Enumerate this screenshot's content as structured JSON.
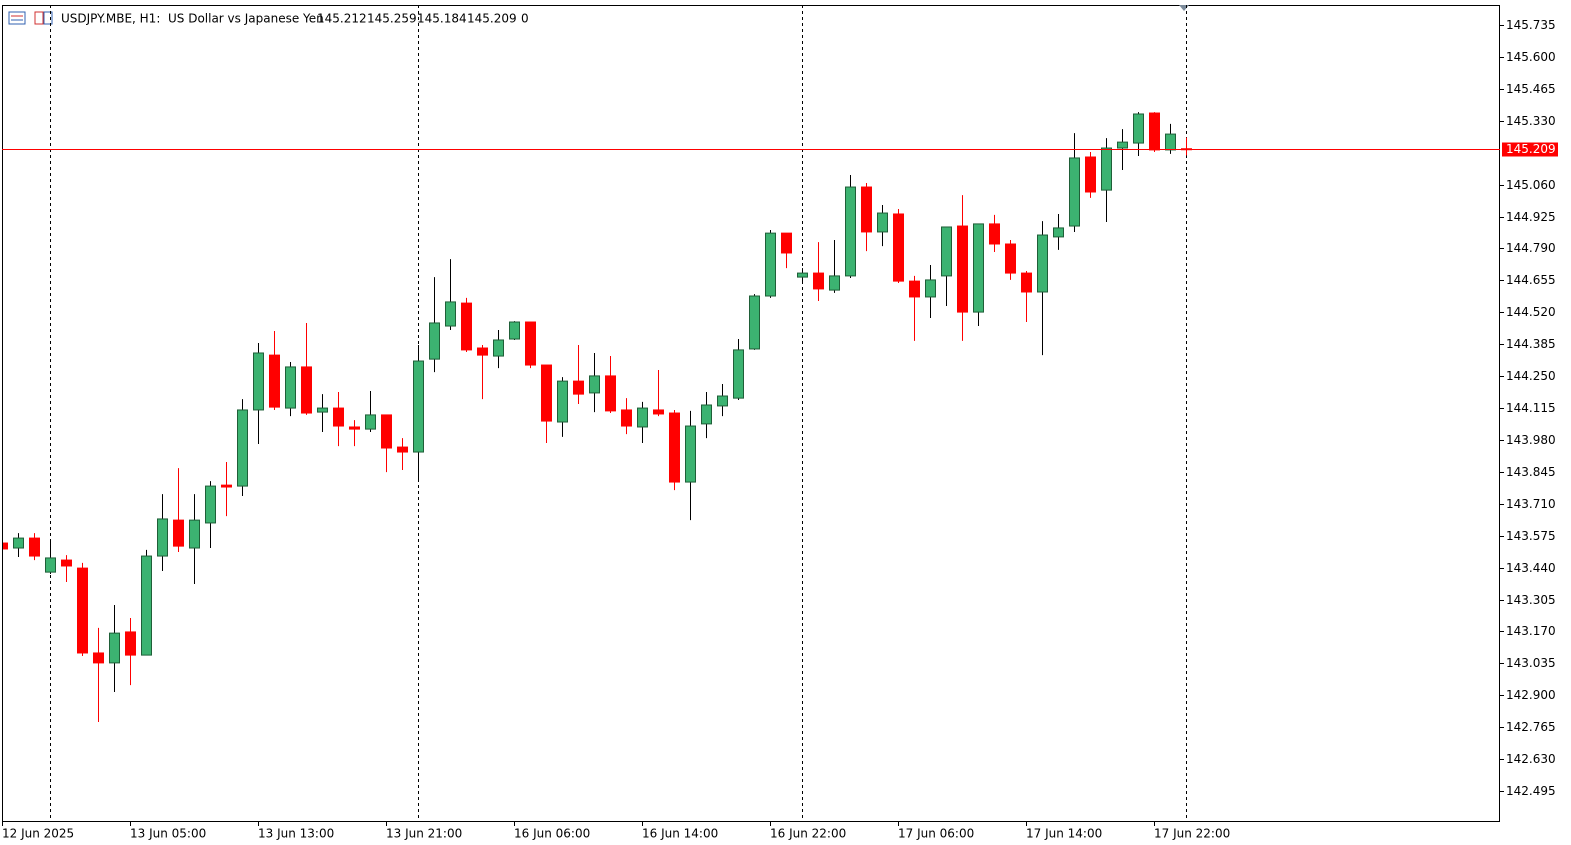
{
  "chart_data": {
    "type": "candlestick",
    "title": "USDJPY.MBE, H1:  US Dollar vs Japanese Yen",
    "header_value": 0,
    "categories": [
      "12 Jun 2025",
      null,
      null,
      null,
      null,
      null,
      null,
      null,
      "13 Jun 05:00",
      null,
      null,
      null,
      null,
      null,
      null,
      null,
      "13 Jun 13:00",
      null,
      null,
      null,
      null,
      null,
      null,
      null,
      "13 Jun 21:00",
      null,
      null,
      null,
      null,
      null,
      null,
      null,
      "16 Jun 06:00",
      null,
      null,
      null,
      null,
      null,
      null,
      null,
      "16 Jun 14:00",
      null,
      null,
      null,
      null,
      null,
      null,
      null,
      "16 Jun 22:00",
      null,
      null,
      null,
      null,
      null,
      null,
      null,
      "17 Jun 06:00",
      null,
      null,
      null,
      null,
      null,
      null,
      null,
      "17 Jun 14:00",
      null,
      null,
      null,
      null,
      null,
      null,
      null,
      "17 Jun 22:00",
      null,
      null
    ],
    "open": [
      143.544,
      143.523,
      143.565,
      143.421,
      143.472,
      143.438,
      143.079,
      143.037,
      143.168,
      143.07,
      143.489,
      143.641,
      143.523,
      143.629,
      143.789,
      143.785,
      144.107,
      144.339,
      144.115,
      144.289,
      144.098,
      144.115,
      144.035,
      144.026,
      144.086,
      143.95,
      143.929,
      144.322,
      144.462,
      144.559,
      144.369,
      144.335,
      144.407,
      144.479,
      144.297,
      144.056,
      144.229,
      144.179,
      144.251,
      144.107,
      144.035,
      144.107,
      144.094,
      143.802,
      144.048,
      144.124,
      144.157,
      144.365,
      144.589,
      144.855,
      144.669,
      144.686,
      144.614,
      144.674,
      145.05,
      144.86,
      144.936,
      144.652,
      144.585,
      144.674,
      144.885,
      144.521,
      144.894,
      144.809,
      144.686,
      144.606,
      144.839,
      144.885,
      145.177,
      145.037,
      145.215,
      145.236,
      145.363,
      145.207,
      145.212
    ],
    "high": [
      143.553,
      143.586,
      143.586,
      143.557,
      143.493,
      143.46,
      143.185,
      143.282,
      143.227,
      143.515,
      143.751,
      143.861,
      143.751,
      143.806,
      143.887,
      144.153,
      144.39,
      144.441,
      144.31,
      144.475,
      144.174,
      144.183,
      144.064,
      144.187,
      144.086,
      143.988,
      144.382,
      144.669,
      144.745,
      144.581,
      144.382,
      144.445,
      144.483,
      144.479,
      144.297,
      144.246,
      144.382,
      144.348,
      144.335,
      144.157,
      144.141,
      144.276,
      144.107,
      144.103,
      144.183,
      144.217,
      144.407,
      144.597,
      144.868,
      144.855,
      144.707,
      144.817,
      144.826,
      145.101,
      145.067,
      144.974,
      144.957,
      144.674,
      144.72,
      144.881,
      145.016,
      144.894,
      144.932,
      144.826,
      144.695,
      144.906,
      144.936,
      145.278,
      145.198,
      145.257,
      145.295,
      145.367,
      145.367,
      145.317,
      145.259
    ],
    "low": [
      143.51,
      143.485,
      143.472,
      143.413,
      143.379,
      143.066,
      142.787,
      142.914,
      142.943,
      143.07,
      143.426,
      143.506,
      143.371,
      143.523,
      143.658,
      143.743,
      143.963,
      144.107,
      144.081,
      144.086,
      144.014,
      143.954,
      143.954,
      144.014,
      143.844,
      143.853,
      143.811,
      144.267,
      144.445,
      144.352,
      144.153,
      144.284,
      144.403,
      144.284,
      143.967,
      143.993,
      144.132,
      144.098,
      144.094,
      144.005,
      143.967,
      144.081,
      143.768,
      143.641,
      143.988,
      144.081,
      144.149,
      144.361,
      144.581,
      144.707,
      144.64,
      144.568,
      144.602,
      144.665,
      144.779,
      144.8,
      144.644,
      144.399,
      144.496,
      144.547,
      144.399,
      144.462,
      144.775,
      144.657,
      144.479,
      144.339,
      144.784,
      144.86,
      145.004,
      144.902,
      145.122,
      145.181,
      145.198,
      145.19,
      145.184
    ],
    "close": [
      143.519,
      143.565,
      143.489,
      143.481,
      143.447,
      143.079,
      143.037,
      143.163,
      143.07,
      143.489,
      143.646,
      143.531,
      143.641,
      143.785,
      143.781,
      144.107,
      144.348,
      144.119,
      144.289,
      144.094,
      144.115,
      144.039,
      144.026,
      144.086,
      143.946,
      143.929,
      144.314,
      144.475,
      144.564,
      144.361,
      144.339,
      144.403,
      144.479,
      144.297,
      144.06,
      144.229,
      144.174,
      144.251,
      144.103,
      144.039,
      144.115,
      144.09,
      143.802,
      144.039,
      144.128,
      144.166,
      144.361,
      144.589,
      144.855,
      144.771,
      144.686,
      144.619,
      144.674,
      145.05,
      144.86,
      144.94,
      144.652,
      144.585,
      144.657,
      144.881,
      144.521,
      144.894,
      144.809,
      144.686,
      144.606,
      144.847,
      144.877,
      145.173,
      145.029,
      145.215,
      145.24,
      145.359,
      145.207,
      145.274,
      145.209
    ],
    "current_price": 145.209,
    "up_color": "#3cb371",
    "down_color": "#ff0000",
    "price_line_color": "#ff0000",
    "ylim": [
      142.364,
      145.82
    ],
    "yticks": [
      145.735,
      {
        "value": 145.6,
        "label": "145.600"
      },
      145.465,
      {
        "value": 145.33,
        "label": "145.330"
      },
      {
        "value": 145.06,
        "label": "145.060"
      },
      144.925,
      {
        "value": 144.79,
        "label": "144.790"
      },
      144.655,
      {
        "value": 144.52,
        "label": "144.520"
      },
      144.385,
      {
        "value": 144.25,
        "label": "144.250"
      },
      144.115,
      {
        "value": 143.98,
        "label": "143.980"
      },
      143.845,
      {
        "value": 143.71,
        "label": "143.710"
      },
      143.575,
      {
        "value": 143.44,
        "label": "143.440"
      },
      143.305,
      {
        "value": 143.17,
        "label": "143.170"
      },
      143.035,
      {
        "value": 142.9,
        "label": "142.900"
      },
      142.765,
      {
        "value": 142.63,
        "label": "142.630"
      },
      142.495
    ]
  }
}
